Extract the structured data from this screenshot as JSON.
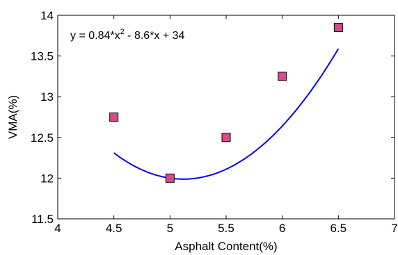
{
  "chart_data": {
    "type": "scatter",
    "xlabel": "Asphalt Content(%)",
    "ylabel": "VMA(%)",
    "xlim": [
      4,
      7
    ],
    "ylim": [
      11.5,
      14
    ],
    "x_ticks": [
      4,
      4.5,
      5,
      5.5,
      6,
      6.5,
      7
    ],
    "x_tick_labels": [
      "4",
      "4.5",
      "5",
      "5.5",
      "6",
      "6.5",
      "7"
    ],
    "y_ticks": [
      11.5,
      12,
      12.5,
      13,
      13.5,
      14
    ],
    "y_tick_labels": [
      "11.5",
      "12",
      "12.5",
      "13",
      "13.5",
      "14"
    ],
    "grid": false,
    "series": [
      {
        "type": "scatter",
        "marker": "square",
        "color": "#d64b8a",
        "x": [
          4.5,
          5.0,
          5.5,
          6.0,
          6.5
        ],
        "y": [
          12.75,
          12.0,
          12.5,
          13.25,
          13.85
        ]
      },
      {
        "type": "line",
        "color": "#0000ff",
        "fit": {
          "a": 0.84,
          "b": -8.6,
          "c": 34
        },
        "x_range": [
          4.5,
          6.5
        ]
      }
    ],
    "annotation": {
      "prefix": "y = 0.84*x",
      "superscript": "2",
      "suffix": " - 8.6*x + 34"
    }
  }
}
